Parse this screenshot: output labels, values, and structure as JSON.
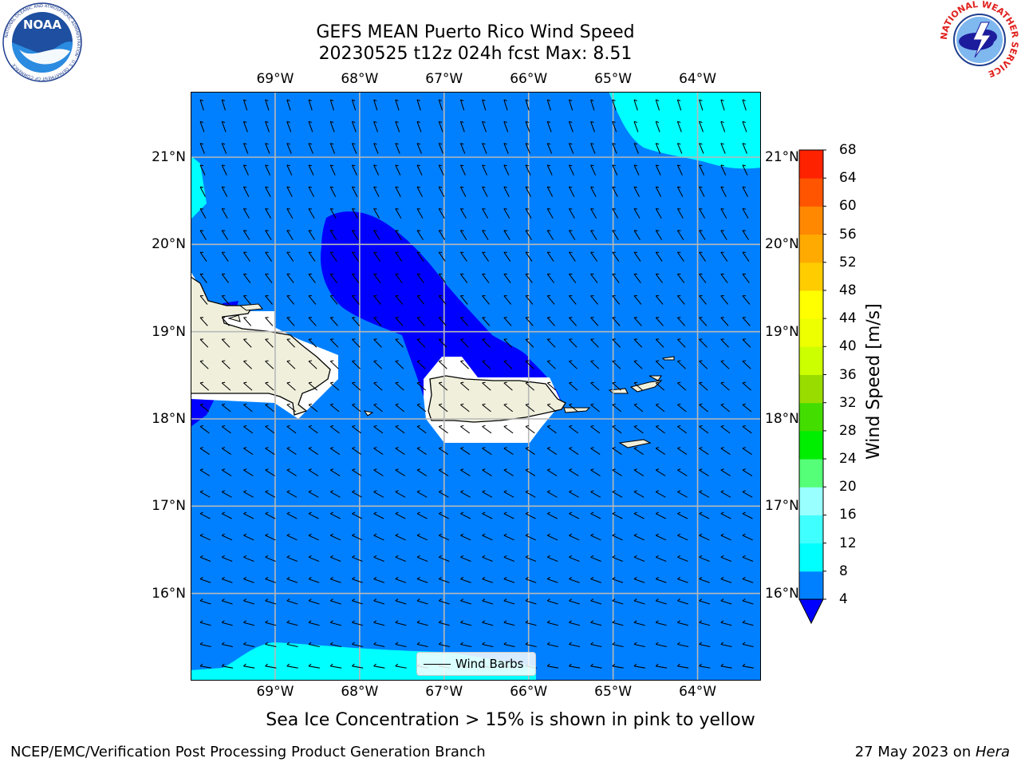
{
  "header": {
    "title_line1": "GEFS MEAN Puerto Rico Wind Speed",
    "title_line2": "20230525 t12z 024h fcst   Max: 8.51"
  },
  "logos": {
    "left": {
      "name": "noaa-logo",
      "text": "NOAA",
      "ring_text": "NATIONAL OCEANIC AND ATMOSPHERIC ADMINISTRATION · U.S. DEPARTMENT OF COMMERCE"
    },
    "right": {
      "name": "nws-logo",
      "ring_text": "NATIONAL WEATHER SERVICE"
    }
  },
  "map": {
    "lon_ticks": [
      "69°W",
      "68°W",
      "67°W",
      "66°W",
      "65°W",
      "64°W"
    ],
    "lat_ticks": [
      "21°N",
      "20°N",
      "19°N",
      "18°N",
      "17°N",
      "16°N"
    ],
    "legend_label": "Wind Barbs"
  },
  "colorbar": {
    "title": "Wind Speed [m/s]",
    "levels": [
      4,
      8,
      12,
      16,
      20,
      24,
      28,
      32,
      36,
      40,
      44,
      48,
      52,
      56,
      60,
      64,
      68
    ],
    "colors": [
      "#0080ff",
      "#00ffff",
      "#40ffff",
      "#99ffff",
      "#55ff77",
      "#00ee00",
      "#44dd00",
      "#99dd00",
      "#ccff00",
      "#eeff00",
      "#ffff00",
      "#ffcc00",
      "#ffaa00",
      "#ff8800",
      "#ff5500",
      "#ff2200"
    ],
    "under_color": "#0000ff"
  },
  "chart_data": {
    "type": "heatmap",
    "title": "GEFS MEAN Puerto Rico Wind Speed",
    "subtitle": "20230525 t12z 024h fcst   Max: 8.51",
    "variable": "Wind Speed [m/s]",
    "max_value": 8.51,
    "x_ticks": [
      "69°W",
      "68°W",
      "67°W",
      "66°W",
      "65°W",
      "64°W"
    ],
    "y_ticks": [
      "21°N",
      "20°N",
      "19°N",
      "18°N",
      "17°N",
      "16°N"
    ],
    "xlim": [
      -70.0,
      -63.25
    ],
    "ylim": [
      15.0,
      21.75
    ],
    "levels": [
      4,
      8,
      12,
      16,
      20,
      24,
      28,
      32,
      36,
      40,
      44,
      48,
      52,
      56,
      60,
      64,
      68
    ],
    "grid": true,
    "legend": "bottom-center"
  },
  "footer": {
    "note": "Sea Ice Concentration > 15% is shown in pink to yellow",
    "left": "NCEP/EMC/Verification Post Processing Product Generation Branch",
    "right_date": "27 May 2023 on ",
    "right_host": "Hera"
  },
  "colors": {
    "land": "#efefdc",
    "speed_4_8": "#0080ff",
    "speed_below_4": "#0000ff",
    "speed_8_12": "#00ffff"
  }
}
